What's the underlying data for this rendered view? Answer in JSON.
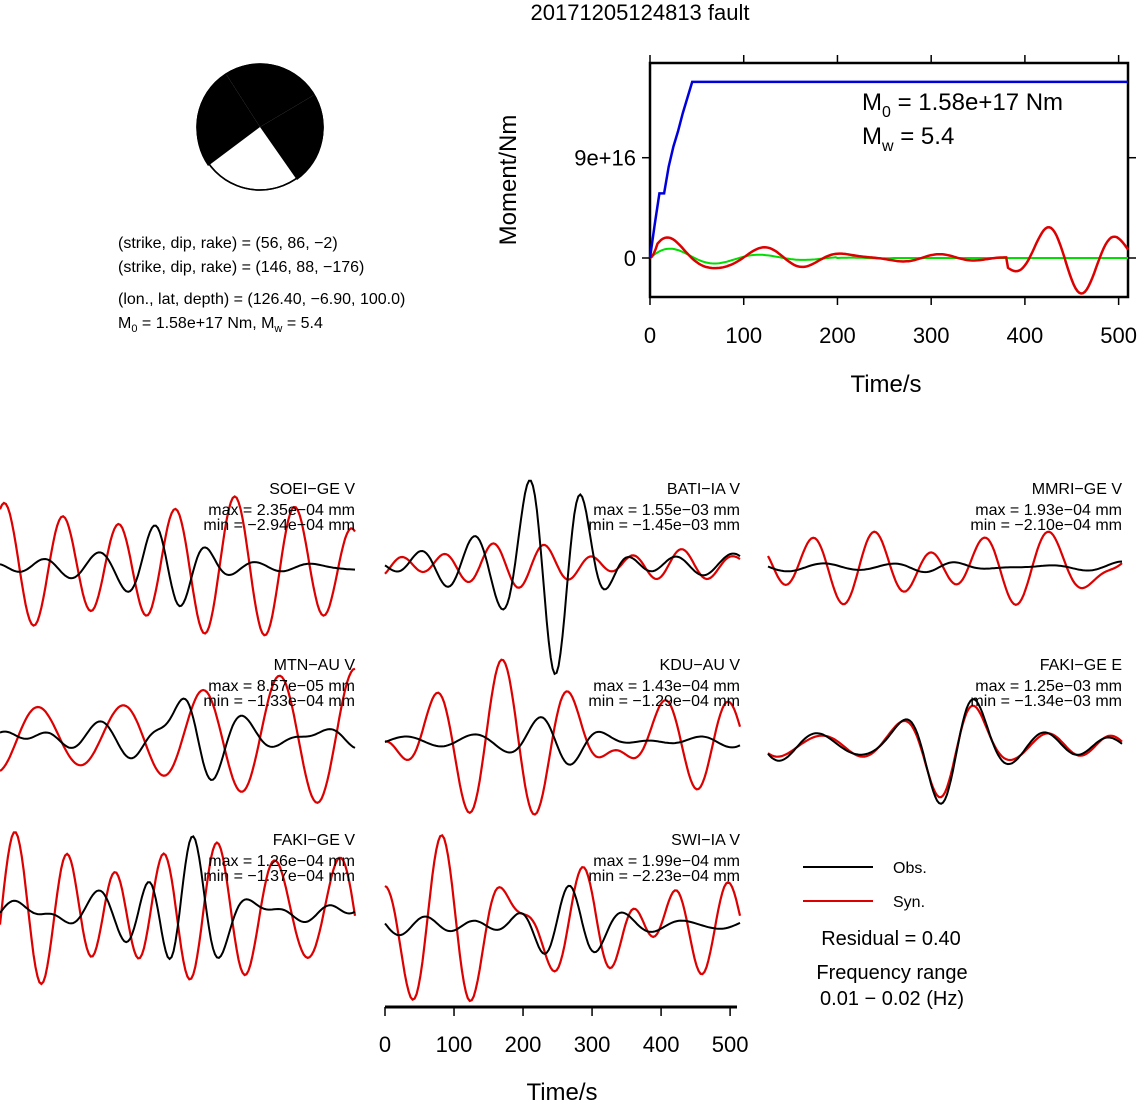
{
  "title": "20171205124813 fault",
  "mechanism": {
    "line1": "(strike, dip, rake) = (56, 86, −2)",
    "line2": "(strike, dip, rake) = (146, 88, −176)",
    "line3": "(lon., lat, depth) = (126.40, −6.90, 100.0)",
    "line4_m0": "1.58e+17 Nm",
    "line4_mw": "5.4"
  },
  "moment_panel": {
    "ylabel": "Moment/Nm",
    "xlabel": "Time/s",
    "m0": "1.58e+17 Nm",
    "mw": "5.4",
    "yticks": [
      "0",
      "9e+16"
    ],
    "xticks": [
      "0",
      "100",
      "200",
      "300",
      "400",
      "500"
    ]
  },
  "stations": [
    {
      "label": "SOEI−GE V",
      "max": "max = 2.35e−04 mm",
      "min": "min = −2.94e−04 mm"
    },
    {
      "label": "BATI−IA V",
      "max": "max = 1.55e−03 mm",
      "min": "min = −1.45e−03 mm"
    },
    {
      "label": "MMRI−GE V",
      "max": "max = 1.93e−04 mm",
      "min": "min = −2.10e−04 mm"
    },
    {
      "label": "MTN−AU V",
      "max": "max = 8.57e−05 mm",
      "min": "min = −1.33e−04 mm"
    },
    {
      "label": "KDU−AU V",
      "max": "max = 1.43e−04 mm",
      "min": "min = −1.29e−04 mm"
    },
    {
      "label": "FAKI−GE E",
      "max": "max = 1.25e−03 mm",
      "min": "min = −1.34e−03 mm"
    },
    {
      "label": "FAKI−GE V",
      "max": "max = 1.26e−04 mm",
      "min": "min = −1.37e−04 mm"
    },
    {
      "label": "SWI−IA V",
      "max": "max = 1.99e−04 mm",
      "min": "min = −2.23e−04 mm"
    }
  ],
  "legend": {
    "obs": "Obs.",
    "syn": "Syn."
  },
  "residual": "Residual = 0.40",
  "freq_label": "Frequency range",
  "freq_value": "0.01 − 0.02 (Hz)",
  "bottom_axis": {
    "xlabel": "Time/s",
    "xticks": [
      "0",
      "100",
      "200",
      "300",
      "400",
      "500"
    ]
  },
  "colors": {
    "obs": "#000000",
    "syn": "#dd0000",
    "cumulative": "#0000dd",
    "moment_rate_green": "#00dd00",
    "moment_rate_red": "#dd0000"
  },
  "chart_data": [
    {
      "type": "line",
      "ylabel": "Moment/Nm",
      "xlabel": "Time/s",
      "xlim": [
        0,
        510
      ],
      "ylim": [
        -3.5e+16,
        1.75e+17
      ],
      "x": [
        0,
        5,
        10,
        15,
        20,
        25,
        30,
        35,
        40,
        45,
        50,
        60,
        100,
        200,
        300,
        400,
        510
      ],
      "series": [
        {
          "type": "cumulative",
          "values": [
            0,
            3e+16,
            5.8e+16,
            5.8e+16,
            8.2e+16,
            1e+17,
            1.14e+17,
            1.3e+17,
            1.44e+17,
            1.58e+17,
            1.58e+17,
            1.58e+17,
            1.58e+17,
            1.58e+17,
            1.58e+17,
            1.58e+17,
            1.58e+17
          ]
        }
      ]
    },
    {
      "type": "line",
      "xlabel": "Time/s",
      "xlim": [
        0,
        510
      ],
      "xticks": [
        0,
        100,
        200,
        300,
        400,
        500
      ]
    }
  ]
}
